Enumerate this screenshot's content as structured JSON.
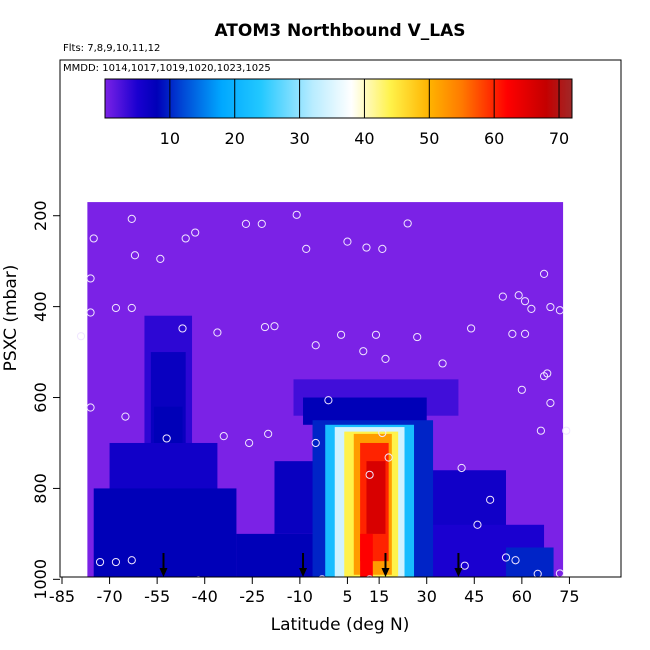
{
  "chart_data": {
    "type": "heatmap",
    "title": "ATOM3 Northbound V_LAS",
    "flights_note": "Flts: 7,8,9,10,11,12",
    "dates_note": "MMDD: 1014,1017,1019,1020,1023,1025",
    "xlabel": "Latitude (deg N)",
    "ylabel": "PSXC (mbar)",
    "xlim": [
      -85,
      90
    ],
    "ylim": [
      1010,
      20
    ],
    "x_ticks": [
      -85,
      -70,
      -55,
      -40,
      -25,
      -10,
      5,
      15,
      30,
      45,
      60,
      75
    ],
    "y_ticks": [
      200,
      400,
      600,
      800,
      1000
    ],
    "colorbar": {
      "min": 0,
      "max": 72,
      "ticks": [
        10,
        20,
        30,
        40,
        50,
        60,
        70
      ],
      "stops": [
        [
          0,
          "#7b22e6"
        ],
        [
          5,
          "#1a00d0"
        ],
        [
          8,
          "#0000b8"
        ],
        [
          12,
          "#0048d6"
        ],
        [
          18,
          "#00a8ff"
        ],
        [
          24,
          "#22c8ff"
        ],
        [
          32,
          "#b8ecff"
        ],
        [
          38,
          "#ffffff"
        ],
        [
          44,
          "#fff24a"
        ],
        [
          50,
          "#ffb300"
        ],
        [
          55,
          "#ff7a00"
        ],
        [
          62,
          "#ff0000"
        ],
        [
          68,
          "#c40000"
        ],
        [
          72,
          "#a02828"
        ]
      ]
    },
    "field_cells": [
      {
        "x0": -77,
        "x1": 73,
        "p0": 170,
        "p1": 1010,
        "value": 0
      },
      {
        "x0": -59,
        "x1": -44,
        "p0": 420,
        "p1": 1010,
        "value": 4
      },
      {
        "x0": -57,
        "x1": -46,
        "p0": 500,
        "p1": 1010,
        "value": 7
      },
      {
        "x0": -56,
        "x1": -47,
        "p0": 620,
        "p1": 1010,
        "value": 8
      },
      {
        "x0": -70,
        "x1": -36,
        "p0": 700,
        "p1": 1010,
        "value": 6
      },
      {
        "x0": -75,
        "x1": -30,
        "p0": 800,
        "p1": 1010,
        "value": 8
      },
      {
        "x0": -30,
        "x1": 2,
        "p0": 900,
        "p1": 1010,
        "value": 8
      },
      {
        "x0": -18,
        "x1": 0,
        "p0": 740,
        "p1": 900,
        "value": 7
      },
      {
        "x0": -12,
        "x1": 40,
        "p0": 560,
        "p1": 640,
        "value": 3
      },
      {
        "x0": -9,
        "x1": 30,
        "p0": 600,
        "p1": 660,
        "value": 8
      },
      {
        "x0": 25,
        "x1": 55,
        "p0": 760,
        "p1": 1010,
        "value": 6
      },
      {
        "x0": 30,
        "x1": 67,
        "p0": 880,
        "p1": 1010,
        "value": 5
      },
      {
        "x0": 55,
        "x1": 70,
        "p0": 930,
        "p1": 1010,
        "value": 10
      },
      {
        "x0": -6,
        "x1": 32,
        "p0": 650,
        "p1": 1010,
        "value": 10
      },
      {
        "x0": -2,
        "x1": 26,
        "p0": 660,
        "p1": 1010,
        "value": 22
      },
      {
        "x0": 1,
        "x1": 23,
        "p0": 665,
        "p1": 1010,
        "value": 34
      },
      {
        "x0": 4,
        "x1": 21,
        "p0": 675,
        "p1": 1000,
        "value": 44
      },
      {
        "x0": 7,
        "x1": 19,
        "p0": 680,
        "p1": 990,
        "value": 52
      },
      {
        "x0": 9,
        "x1": 18,
        "p0": 700,
        "p1": 960,
        "value": 60
      },
      {
        "x0": 11,
        "x1": 17,
        "p0": 740,
        "p1": 900,
        "value": 66
      },
      {
        "x0": 9,
        "x1": 13,
        "p0": 900,
        "p1": 1000,
        "value": 62
      }
    ],
    "sample_points": [
      [
        -54,
        295
      ],
      [
        -27,
        218
      ],
      [
        -22,
        218
      ],
      [
        -11,
        198
      ],
      [
        -46,
        250
      ],
      [
        -43,
        237
      ],
      [
        -63,
        207
      ],
      [
        -62,
        287
      ],
      [
        -75,
        250
      ],
      [
        -76,
        338
      ],
      [
        -76,
        413
      ],
      [
        -79,
        465
      ],
      [
        -68,
        403
      ],
      [
        -63,
        403
      ],
      [
        -47,
        448
      ],
      [
        -36,
        457
      ],
      [
        -21,
        445
      ],
      [
        -18,
        443
      ],
      [
        -8,
        273
      ],
      [
        5,
        257
      ],
      [
        11,
        270
      ],
      [
        16,
        273
      ],
      [
        24,
        217
      ],
      [
        -5,
        485
      ],
      [
        3,
        462
      ],
      [
        10,
        498
      ],
      [
        14,
        462
      ],
      [
        17,
        515
      ],
      [
        27,
        467
      ],
      [
        35,
        525
      ],
      [
        44,
        448
      ],
      [
        54,
        378
      ],
      [
        59,
        375
      ],
      [
        61,
        388
      ],
      [
        67,
        328
      ],
      [
        63,
        405
      ],
      [
        69,
        401
      ],
      [
        72,
        408
      ],
      [
        57,
        460
      ],
      [
        61,
        460
      ],
      [
        68,
        547
      ],
      [
        67,
        553
      ],
      [
        60,
        583
      ],
      [
        69,
        612
      ],
      [
        66,
        673
      ],
      [
        74,
        673
      ],
      [
        -76,
        622
      ],
      [
        -65,
        642
      ],
      [
        -52,
        690
      ],
      [
        -34,
        685
      ],
      [
        -26,
        700
      ],
      [
        -20,
        680
      ],
      [
        -1,
        606
      ],
      [
        -5,
        700
      ],
      [
        12,
        770
      ],
      [
        16,
        678
      ],
      [
        18,
        732
      ],
      [
        41,
        755
      ],
      [
        50,
        825
      ],
      [
        46,
        880
      ],
      [
        55,
        952
      ],
      [
        58,
        958
      ],
      [
        65,
        988
      ],
      [
        72,
        987
      ],
      [
        -73,
        962
      ],
      [
        -68,
        962
      ],
      [
        -63,
        958
      ],
      [
        -42,
        1002
      ],
      [
        -33,
        1008
      ],
      [
        -25,
        1008
      ],
      [
        -3,
        1000
      ],
      [
        12,
        1000
      ],
      [
        16,
        1005
      ],
      [
        21,
        1002
      ],
      [
        31,
        1007
      ],
      [
        38,
        1010
      ],
      [
        42,
        970
      ]
    ],
    "arrows_x": [
      -53,
      -9,
      17,
      40
    ]
  }
}
